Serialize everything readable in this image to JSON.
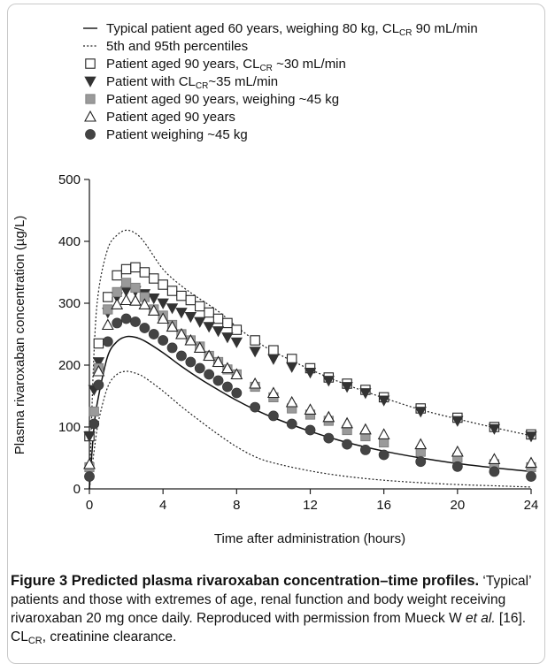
{
  "chart_data": {
    "type": "line",
    "xlabel": "Time after administration (hours)",
    "ylabel": "Plasma rivaroxaban concentration (µg/L)",
    "xlim": [
      0,
      24
    ],
    "ylim": [
      0,
      500
    ],
    "x_ticks": [
      "0",
      "4",
      "8",
      "12",
      "16",
      "20",
      "24"
    ],
    "y_ticks": [
      "0",
      "100",
      "200",
      "300",
      "400",
      "500"
    ],
    "grid": false,
    "legend_position": "top",
    "legend": [
      {
        "marker": "line",
        "text_before": "Typical patient aged 60 years, weighing 80 kg, CL",
        "sub": "CR",
        "text_after": " 90 mL/min"
      },
      {
        "marker": "dotted",
        "text_before": "5th and 95th percentiles",
        "sub": "",
        "text_after": ""
      },
      {
        "marker": "open-square",
        "text_before": "Patient aged 90 years, CL",
        "sub": "CR",
        "text_after": " ~30 mL/min"
      },
      {
        "marker": "filled-down-triangle",
        "text_before": "Patient with CL",
        "sub": "CR",
        "text_after": "~35 mL/min"
      },
      {
        "marker": "gray-square",
        "text_before": "Patient aged 90 years, weighing ~45 kg",
        "sub": "",
        "text_after": ""
      },
      {
        "marker": "open-triangle",
        "text_before": "Patient aged 90 years",
        "sub": "",
        "text_after": ""
      },
      {
        "marker": "filled-circle",
        "text_before": "Patient weighing ~45 kg",
        "sub": "",
        "text_after": ""
      }
    ],
    "lines": {
      "typical": {
        "x": [
          0,
          0.25,
          0.5,
          1,
          1.5,
          2,
          2.5,
          3,
          4,
          5,
          6,
          7,
          8,
          9,
          10,
          12,
          14,
          16,
          18,
          20,
          22,
          24
        ],
        "y": [
          0,
          100,
          150,
          215,
          238,
          246,
          245,
          239,
          220,
          198,
          178,
          160,
          143,
          128,
          115,
          93,
          75,
          61,
          50,
          41,
          34,
          28
        ]
      },
      "p95": {
        "x": [
          0,
          0.25,
          0.5,
          1,
          1.5,
          2,
          2.5,
          3,
          4,
          5,
          6,
          7,
          8,
          9,
          10,
          12,
          14,
          16,
          18,
          20,
          22,
          24
        ],
        "y": [
          0,
          220,
          320,
          388,
          410,
          418,
          413,
          398,
          355,
          328,
          307,
          287,
          262,
          240,
          222,
          193,
          168,
          147,
          128,
          113,
          99,
          86
        ]
      },
      "p5": {
        "x": [
          0,
          0.25,
          0.5,
          1,
          1.5,
          2,
          2.5,
          3,
          4,
          5,
          6,
          7,
          8,
          9,
          10,
          12,
          14,
          16,
          18,
          20,
          22,
          24
        ],
        "y": [
          0,
          60,
          110,
          165,
          185,
          190,
          187,
          180,
          158,
          133,
          110,
          88,
          68,
          52,
          42,
          29,
          20,
          14,
          10,
          7,
          5,
          3
        ]
      }
    },
    "series": [
      {
        "marker": "open-square",
        "x": [
          0,
          0.5,
          1,
          1.5,
          2,
          2.5,
          3,
          3.5,
          4,
          4.5,
          5,
          5.5,
          6,
          6.5,
          7,
          7.5,
          8,
          9,
          10,
          11,
          12,
          13,
          14,
          15,
          16,
          18,
          20,
          22,
          24
        ],
        "y": [
          85,
          235,
          310,
          345,
          355,
          358,
          350,
          340,
          330,
          320,
          312,
          305,
          295,
          285,
          275,
          268,
          257,
          240,
          224,
          210,
          195,
          180,
          170,
          160,
          148,
          130,
          115,
          100,
          88
        ]
      },
      {
        "marker": "filled-down-triangle",
        "x": [
          0,
          0.25,
          0.5,
          1,
          1.5,
          2,
          2.5,
          3,
          3.5,
          4,
          4.5,
          5,
          5.5,
          6,
          6.5,
          7,
          7.5,
          8,
          9,
          10,
          11,
          12,
          13,
          14,
          15,
          16,
          18,
          20,
          22,
          24
        ],
        "y": [
          85,
          160,
          205,
          285,
          310,
          320,
          320,
          315,
          308,
          300,
          292,
          285,
          278,
          270,
          262,
          255,
          245,
          237,
          222,
          210,
          197,
          188,
          175,
          165,
          155,
          143,
          125,
          110,
          97,
          85
        ]
      },
      {
        "marker": "gray-square",
        "x": [
          0,
          0.25,
          0.5,
          1,
          1.5,
          2,
          2.5,
          3,
          3.5,
          4,
          4.5,
          5,
          5.5,
          6,
          6.5,
          7,
          7.5,
          8,
          9,
          10,
          11,
          12,
          13,
          14,
          15,
          16,
          18,
          20,
          22,
          24
        ],
        "y": [
          35,
          125,
          195,
          290,
          318,
          333,
          325,
          310,
          290,
          280,
          265,
          250,
          240,
          230,
          215,
          205,
          193,
          185,
          165,
          148,
          130,
          120,
          110,
          95,
          85,
          75,
          60,
          50,
          40,
          35
        ]
      },
      {
        "marker": "open-triangle",
        "x": [
          0,
          0.5,
          1,
          1.5,
          2,
          2.5,
          3,
          3.5,
          4,
          4.5,
          5,
          5.5,
          6,
          6.5,
          7,
          7.5,
          8,
          9,
          10,
          11,
          12,
          13,
          14,
          15,
          16,
          18,
          20,
          22,
          24
        ],
        "y": [
          40,
          190,
          265,
          298,
          305,
          304,
          298,
          288,
          275,
          262,
          250,
          240,
          228,
          215,
          205,
          195,
          185,
          170,
          155,
          140,
          128,
          116,
          106,
          96,
          88,
          72,
          60,
          48,
          42
        ]
      },
      {
        "marker": "filled-circle",
        "x": [
          0,
          0.25,
          0.5,
          1,
          1.5,
          2,
          2.5,
          3,
          3.5,
          4,
          4.5,
          5,
          5.5,
          6,
          6.5,
          7,
          7.5,
          8,
          9,
          10,
          11,
          12,
          13,
          14,
          15,
          16,
          18,
          20,
          22,
          24
        ],
        "y": [
          20,
          105,
          168,
          238,
          268,
          275,
          270,
          260,
          250,
          240,
          228,
          215,
          205,
          195,
          185,
          175,
          165,
          155,
          132,
          118,
          105,
          95,
          82,
          72,
          63,
          55,
          44,
          36,
          28,
          20
        ]
      }
    ]
  },
  "caption": {
    "title": "Figure 3 Predicted plasma rivaroxaban concentration–time profiles.",
    "text_1": " ‘Typical’ patients and those with extremes of age, renal function and body weight receiving rivaroxaban 20 mg once daily. Reproduced with permission from Mueck W ",
    "et_al": "et al.",
    "text_2": " [16]. CL",
    "sub": "CR",
    "text_3": ", creatinine clearance."
  }
}
